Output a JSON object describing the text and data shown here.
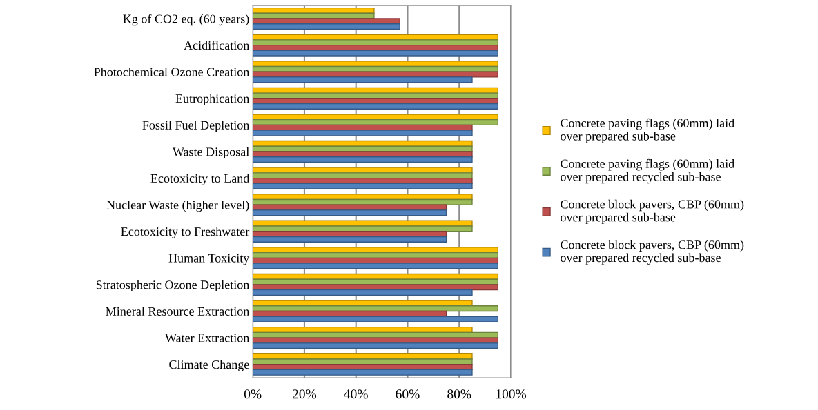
{
  "chart_data": {
    "type": "bar",
    "orientation": "horizontal",
    "categories": [
      "Kg of CO2 eq. (60 years)",
      "Acidification",
      "Photochemical Ozone Creation",
      "Eutrophication",
      "Fossil Fuel Depletion",
      "Waste Disposal",
      "Ecotoxicity to Land",
      "Nuclear Waste (higher level)",
      "Ecotoxicity to Freshwater",
      "Human Toxicity",
      "Stratospheric Ozone Depletion",
      "Mineral Resource Extraction",
      "Water Extraction",
      "Climate Change"
    ],
    "series": [
      {
        "name": "Concrete paving flags (60mm) laid over prepared sub-base",
        "color": "#ffc000",
        "values": [
          47,
          95,
          95,
          95,
          95,
          85,
          85,
          85,
          85,
          95,
          95,
          85,
          85,
          85
        ]
      },
      {
        "name": "Concrete paving flags (60mm) laid over prepared recycled sub-base",
        "color": "#9bbb59",
        "values": [
          47,
          95,
          95,
          95,
          95,
          85,
          85,
          85,
          85,
          95,
          95,
          95,
          95,
          85
        ]
      },
      {
        "name": "Concrete block pavers, CBP (60mm) over prepared sub-base",
        "color": "#c0504d",
        "values": [
          57,
          95,
          95,
          95,
          85,
          85,
          85,
          75,
          75,
          95,
          95,
          75,
          95,
          85
        ]
      },
      {
        "name": "Concrete block pavers, CBP (60mm) over prepared recycled sub-base",
        "color": "#4f81bd",
        "values": [
          57,
          95,
          85,
          95,
          85,
          85,
          85,
          75,
          75,
          95,
          85,
          95,
          95,
          85
        ]
      }
    ],
    "xlim": [
      0,
      100
    ],
    "xticks": [
      {
        "value": 0,
        "label": "0%"
      },
      {
        "value": 20,
        "label": "20%"
      },
      {
        "value": 40,
        "label": "40%"
      },
      {
        "value": 60,
        "label": "60%"
      },
      {
        "value": 80,
        "label": "80%"
      },
      {
        "value": 100,
        "label": "100%"
      }
    ],
    "grid": "x",
    "legend": "right"
  }
}
